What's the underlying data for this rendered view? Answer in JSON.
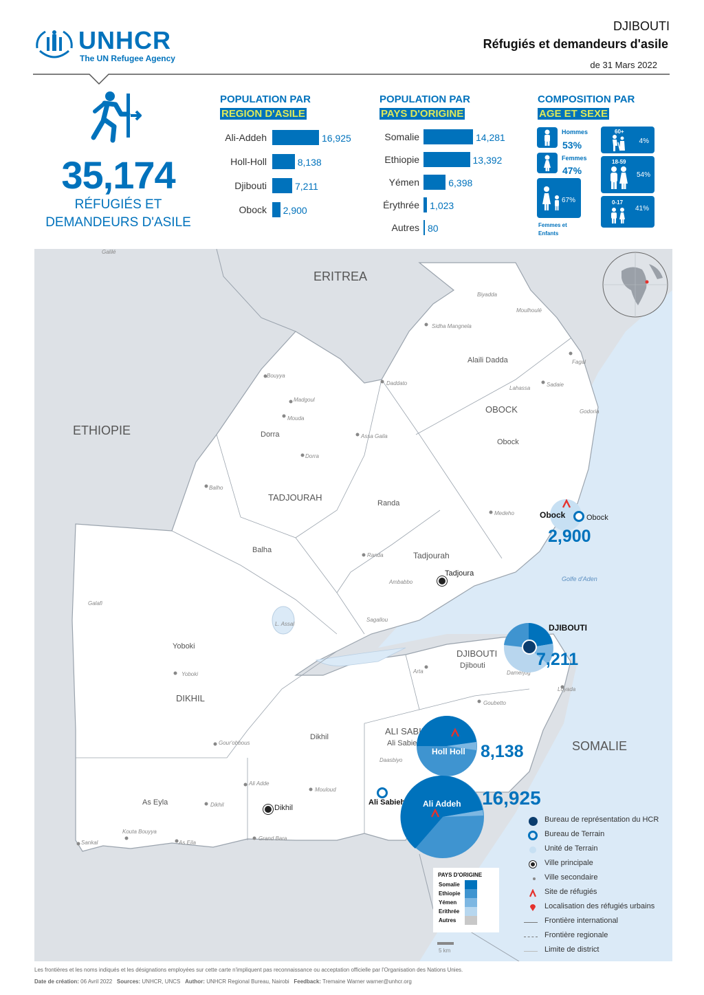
{
  "header": {
    "logo_text": "UNHCR",
    "logo_subtext": "The UN Refugee Agency",
    "country": "DJIBOUTI",
    "title": "Réfugiés et demandeurs d'asile",
    "date": "de 31 Mars 2022"
  },
  "total": {
    "value": "35,174",
    "label_line1": "RÉFUGIÉS ET",
    "label_line2": "DEMANDEURS D'ASILE"
  },
  "region": {
    "title1": "POPULATION PAR",
    "title2": "REGION D'ASILE",
    "items": [
      {
        "label": "Ali-Addeh",
        "value": "16,925",
        "num": 16925
      },
      {
        "label": "Holl-Holl",
        "value": "8,138",
        "num": 8138
      },
      {
        "label": "Djibouti",
        "value": "7,211",
        "num": 7211
      },
      {
        "label": "Obock",
        "value": "2,900",
        "num": 2900
      }
    ]
  },
  "origin": {
    "title1": "POPULATION PAR",
    "title2": "PAYS D'ORIGINE",
    "items": [
      {
        "label": "Somalie",
        "value": "14,281",
        "num": 14281
      },
      {
        "label": "Ethiopie",
        "value": "13,392",
        "num": 13392
      },
      {
        "label": "Yémen",
        "value": "6,398",
        "num": 6398
      },
      {
        "label": "Érythrée",
        "value": "1,023",
        "num": 1023
      },
      {
        "label": "Autres",
        "value": "80",
        "num": 80
      }
    ]
  },
  "composition": {
    "title1": "COMPOSITION PAR",
    "title2": "AGE ET SEXE",
    "hommes_label": "Hommes",
    "hommes_pct": "53%",
    "femmes_label": "Femmes",
    "femmes_pct": "47%",
    "fe_pct": "67%",
    "fe_label_line1": "Femmes et",
    "fe_label_line2": "Enfants",
    "age60_label": "60+",
    "age60_pct": "4%",
    "age18_label": "18-59",
    "age18_pct": "54%",
    "age0_label": "0-17",
    "age0_pct": "41%"
  },
  "map": {
    "countries": {
      "eritrea": "ERITREA",
      "ethiopie": "ETHIOPIE",
      "somalie": "SOMALIE"
    },
    "regions": {
      "obock": "OBOCK",
      "tadjourah": "TADJOURAH",
      "djibouti": "DJIBOUTI",
      "ali_sabieh": "ALI SABIEH",
      "dikhil": "DIKHIL"
    },
    "districts": {
      "alaili": "Alaili Dadda",
      "obock": "Obock",
      "dorra": "Dorra",
      "randa": "Randa",
      "balha": "Balha",
      "tadjourah": "Tadjourah",
      "djibouti": "Djibouti",
      "ali_sabieh": "Ali Sabieh",
      "yoboki": "Yoboki",
      "dikhil": "Dikhil",
      "as_eyla": "As Eyla"
    },
    "towns": {
      "biyadda": "Biyadda",
      "moulhoule": "Moulhoulé",
      "khor": "Sidha Mangnela",
      "ouddaouli": "Daddato",
      "lahassa": "Lahassa",
      "sadaie": "Sadaie",
      "fagal": "Fagal",
      "godoria": "Godoria",
      "balho": "Balho",
      "bouyya": "Bouyya",
      "madgoul": "Madgoul",
      "mouda": "Mouda",
      "assa_gaila": "Assa Gaila",
      "dorra": "Dorra",
      "medeho": "Medeho",
      "randa": "Randa",
      "ambabo": "Ambabbo",
      "sagallou": "Sagallou",
      "galafi": "Galafi",
      "yoboki": "Yoboki",
      "arta": "Arta",
      "damerjog": "Damerjog",
      "loyada": "Loyada",
      "goubetto": "Goubetto",
      "gour": "Gour'obbous",
      "daasbiyo": "Daasbiyo",
      "ali_adde": "Ali Adde",
      "mouloud": "Mouloud",
      "dikhil_s": "Dikhil",
      "grand_bara": "Grand Bara",
      "kouta": "Kouta Bouyya",
      "as_eila": "As Eila",
      "sankal": "Sankal",
      "galilé": "Galilé",
      "golfe": "Golfe d'Aden",
      "lac": "L. Assal"
    },
    "cities": {
      "obock": "Obock",
      "obock_office": "Obock",
      "tadjoura": "Tadjoura",
      "djibouti": "DJIBOUTI",
      "ali_sabieh": "Ali Sabieh",
      "dikhil": "Dikhil"
    },
    "sites": {
      "obock": {
        "name": "Obock",
        "value": "2,900"
      },
      "djibouti": {
        "value": "7,211"
      },
      "holl_holl": {
        "name": "Holl Holl",
        "value": "8,138"
      },
      "ali_addeh": {
        "name": "Ali Addeh",
        "value": "16,925"
      }
    },
    "pie_legend": {
      "title": "PAYS D'ORIGINE",
      "items": [
        "Somalie",
        "Ethiopie",
        "Yémen",
        "Erithrée",
        "Autres"
      ],
      "colors": [
        "#0072BC",
        "#3F94D0",
        "#7DB7E2",
        "#B7D7EF",
        "#C8C8C8"
      ]
    },
    "scale": "5 km",
    "legend": [
      "Bureau de représentation du HCR",
      "Bureau de Terrain",
      "Unité de Terrain",
      "Ville principale",
      "Ville secondaire",
      "Site de réfugiés",
      "Localisation des réfugiés urbains",
      "Frontière international",
      "Frontière regionale",
      "Limite de district"
    ]
  },
  "footer": {
    "disclaimer": "Les frontières et les noms indiqués et les désignations employées sur cette carte n'impliquent pas reconnaissance ou acceptation officielle par l'Organisation des Nations Unies.",
    "creation_label": "Date de création:",
    "creation_value": "06 Avril 2022",
    "sources_label": "Sources:",
    "sources_value": "UNHCR, UNCS",
    "author_label": "Author:",
    "author_value": "UNHCR Regional Bureau, Nairobi",
    "feedback_label": "Feedback:",
    "feedback_value": "Tremaine Warner warner@unhcr.org"
  }
}
